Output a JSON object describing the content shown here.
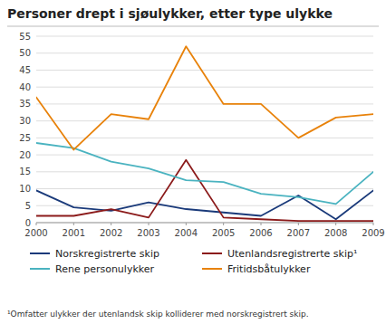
{
  "chart_data": {
    "type": "line",
    "title": "Personer drept i sjøulykker, etter type ulykke",
    "annotations": [
      "¹Omfatter ulykker der utenlandsk skip kolliderer med norskregistrert skip."
    ],
    "x": [
      2000,
      2001,
      2002,
      2003,
      2004,
      2005,
      2006,
      2007,
      2008,
      2009
    ],
    "xlim": [
      2000,
      2009
    ],
    "xticks": [
      2000,
      2001,
      2002,
      2003,
      2004,
      2005,
      2006,
      2007,
      2008,
      2009
    ],
    "series": [
      {
        "name": "Norskregistrerte skip",
        "color": "#1a3a7a",
        "values": [
          9.5,
          4.5,
          3.5,
          6,
          4,
          3,
          2,
          8,
          1,
          9.5
        ]
      },
      {
        "name": "Utenlandsregistrerte skip¹",
        "color": "#8b1a1a",
        "values": [
          2,
          2,
          4,
          1.5,
          18.5,
          1.5,
          1,
          0.5,
          0.5,
          0.5
        ]
      },
      {
        "name": "Rene personulykker",
        "color": "#4ab3c0",
        "values": [
          23.5,
          22,
          18,
          16,
          12.5,
          12,
          8.5,
          7.5,
          5.5,
          15
        ]
      },
      {
        "name": "Fritidsbåtulykker",
        "color": "#e8820a",
        "values": [
          37,
          21.5,
          32,
          30.5,
          52,
          35,
          35,
          25,
          31,
          32
        ]
      }
    ],
    "ylim": [
      0,
      55
    ],
    "yticks": [
      0,
      5,
      10,
      15,
      20,
      25,
      30,
      35,
      40,
      45,
      50,
      55
    ],
    "grid": true,
    "legend": "bottom"
  }
}
